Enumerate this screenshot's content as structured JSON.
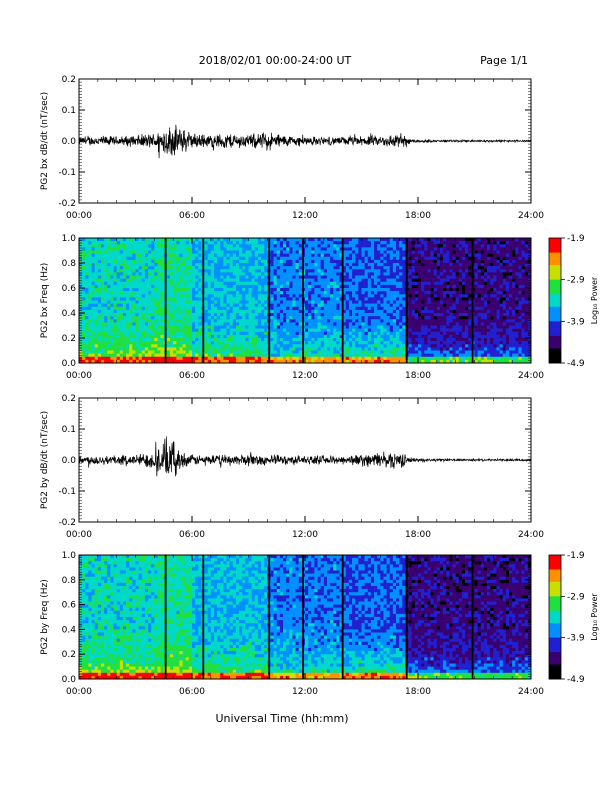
{
  "header": {
    "date_range": "2018/02/01  00:00-24:00 UT",
    "page": "Page 1/1"
  },
  "footer": {
    "xlabel": "Universal Time (hh:mm)"
  },
  "colors": {
    "trace": "#000000",
    "spectrogram_scale": [
      "#000000",
      "#3a0070",
      "#2020d0",
      "#0090ff",
      "#00d8c8",
      "#20e040",
      "#c8e000",
      "#ff9000",
      "#ff0000"
    ]
  },
  "colorbar": {
    "label": "Log₁₀ Power",
    "ticks": [
      "-1.9",
      "-2.9",
      "-3.9",
      "-4.9"
    ]
  },
  "chart_data": [
    {
      "type": "line",
      "id": "bx-timeseries",
      "ylabel": "PG2 bx dB/dt (nT/sec)",
      "xlim": [
        0,
        24
      ],
      "ylim": [
        -0.2,
        0.2
      ],
      "y_ticks": [
        "0.2",
        "0.1",
        "0.0",
        "-0.1",
        "-0.2"
      ],
      "x_ticks": [
        "00:00",
        "06:00",
        "12:00",
        "18:00",
        "24:00"
      ],
      "envelope": {
        "x_hours": [
          0,
          1,
          2,
          3,
          4,
          4.5,
          5,
          5.5,
          6,
          7,
          8,
          9,
          10,
          11,
          12,
          13,
          14,
          15,
          16,
          17,
          17.5,
          18,
          19,
          20,
          21,
          22,
          23,
          24
        ],
        "amplitude": [
          0.015,
          0.02,
          0.018,
          0.022,
          0.03,
          0.055,
          0.06,
          0.05,
          0.03,
          0.025,
          0.03,
          0.025,
          0.035,
          0.022,
          0.018,
          0.015,
          0.016,
          0.018,
          0.02,
          0.03,
          0.012,
          0.006,
          0.004,
          0.004,
          0.004,
          0.004,
          0.004,
          0.004
        ]
      }
    },
    {
      "type": "heatmap",
      "id": "bx-spectrogram",
      "ylabel": "PG2 bx Freq (Hz)",
      "xlim": [
        0,
        24
      ],
      "ylim": [
        0,
        1.0
      ],
      "zlim": [
        -4.9,
        -1.9
      ],
      "y_ticks": [
        "1.0",
        "0.8",
        "0.6",
        "0.4",
        "0.2",
        "0.0"
      ],
      "x_ticks": [
        "00:00",
        "06:00",
        "12:00",
        "18:00",
        "24:00"
      ],
      "gap_lines_hours": [
        4.6,
        6.6,
        10.1,
        11.9,
        14.0,
        17.4,
        20.9
      ]
    },
    {
      "type": "line",
      "id": "by-timeseries",
      "ylabel": "PG2 by dB/dt (nT/sec)",
      "xlim": [
        0,
        24
      ],
      "ylim": [
        -0.2,
        0.2
      ],
      "y_ticks": [
        "0.2",
        "0.1",
        "0.0",
        "-0.1",
        "-0.2"
      ],
      "x_ticks": [
        "00:00",
        "06:00",
        "12:00",
        "18:00",
        "24:00"
      ],
      "envelope": {
        "x_hours": [
          0,
          1,
          2,
          3,
          4,
          4.5,
          5,
          5.5,
          6,
          7,
          8,
          9,
          10,
          11,
          12,
          13,
          14,
          15,
          16,
          17,
          17.5,
          18,
          19,
          20,
          21,
          22,
          23,
          24
        ],
        "amplitude": [
          0.015,
          0.02,
          0.018,
          0.02,
          0.035,
          0.08,
          0.07,
          0.03,
          0.02,
          0.018,
          0.02,
          0.022,
          0.02,
          0.018,
          0.016,
          0.015,
          0.017,
          0.022,
          0.028,
          0.035,
          0.012,
          0.006,
          0.005,
          0.004,
          0.004,
          0.004,
          0.004,
          0.004
        ]
      }
    },
    {
      "type": "heatmap",
      "id": "by-spectrogram",
      "ylabel": "PG2 by Freq (Hz)",
      "xlim": [
        0,
        24
      ],
      "ylim": [
        0,
        1.0
      ],
      "zlim": [
        -4.9,
        -1.9
      ],
      "y_ticks": [
        "1.0",
        "0.8",
        "0.6",
        "0.4",
        "0.2",
        "0.0"
      ],
      "x_ticks": [
        "00:00",
        "06:00",
        "12:00",
        "18:00",
        "24:00"
      ],
      "gap_lines_hours": [
        4.6,
        6.6,
        10.1,
        11.9,
        14.0,
        17.4,
        20.9
      ]
    }
  ]
}
